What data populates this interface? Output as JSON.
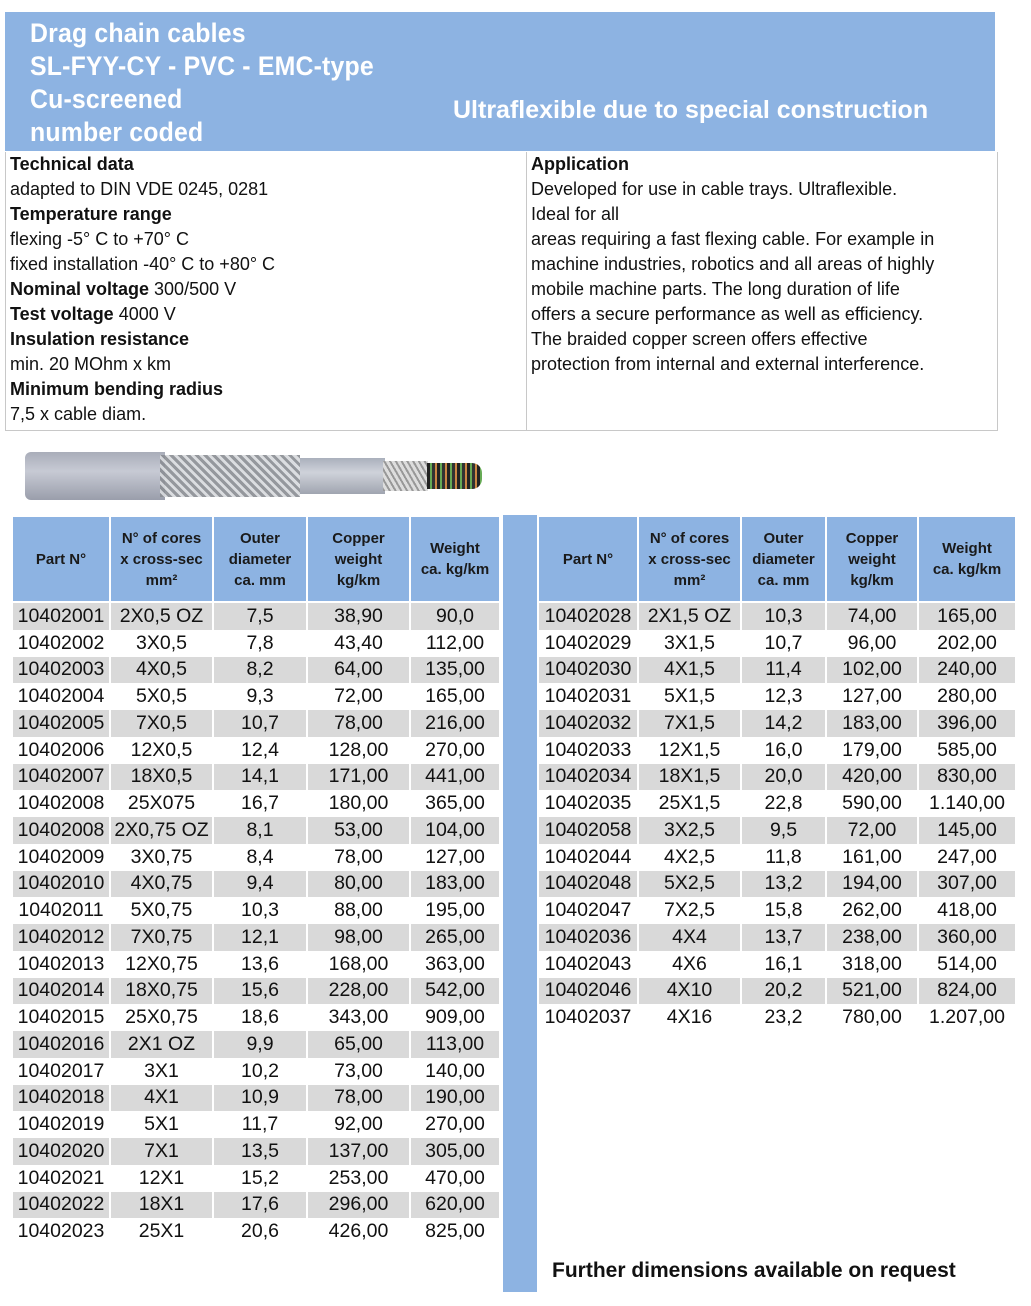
{
  "header": {
    "title_lines": [
      "Drag chain cables",
      "SL-FYY-CY - PVC - EMC-type",
      "Cu-screened",
      "number coded"
    ],
    "subtitle": "Ultraflexible due to special construction",
    "color": "#8db3e2"
  },
  "technical": {
    "heading": "Technical data",
    "standard": "adapted to DIN VDE 0245, 0281",
    "temp_heading": "Temperature range",
    "temp_flex": "flexing -5° C to +70° C",
    "temp_fixed": "fixed installation -40° C to +80° C",
    "nom_label": "Nominal voltage",
    "nom_value": " 300/500 V",
    "test_label": "Test voltage",
    "test_value": " 4000 V",
    "ins_heading": "Insulation resistance",
    "ins_value": "min. 20 MOhm x km",
    "bend_heading": "Minimum bending radius",
    "bend_value": "7,5 x cable diam."
  },
  "application": {
    "heading": "Application",
    "lines": [
      "Developed for use in cable trays. Ultraflexible.",
      "Ideal for all",
      "areas requiring a fast flexing cable. For example in",
      "machine industries, robotics and all areas of highly",
      "mobile machine parts. The long duration of life",
      "offers a secure performance as well as efficiency.",
      "The braided copper screen offers effective",
      "protection from internal and external interference."
    ]
  },
  "table": {
    "headers": [
      "Part N°",
      "N° of cores\nx cross-sec\nmm²",
      "Outer\ndiameter\nca. mm",
      "Copper\nweight\nkg/km",
      "Weight\nca. kg/km"
    ],
    "left_rows": [
      [
        "10402001",
        "2X0,5 OZ",
        "7,5",
        "38,90",
        "90,0"
      ],
      [
        "10402002",
        "3X0,5",
        "7,8",
        "43,40",
        "112,00"
      ],
      [
        "10402003",
        "4X0,5",
        "8,2",
        "64,00",
        "135,00"
      ],
      [
        "10402004",
        "5X0,5",
        "9,3",
        "72,00",
        "165,00"
      ],
      [
        "10402005",
        "7X0,5",
        "10,7",
        "78,00",
        "216,00"
      ],
      [
        "10402006",
        "12X0,5",
        "12,4",
        "128,00",
        "270,00"
      ],
      [
        "10402007",
        "18X0,5",
        "14,1",
        "171,00",
        "441,00"
      ],
      [
        "10402008",
        "25X075",
        "16,7",
        "180,00",
        "365,00"
      ],
      [
        "10402008",
        "2X0,75 OZ",
        "8,1",
        "53,00",
        "104,00"
      ],
      [
        "10402009",
        "3X0,75",
        "8,4",
        "78,00",
        "127,00"
      ],
      [
        "10402010",
        "4X0,75",
        "9,4",
        "80,00",
        "183,00"
      ],
      [
        "10402011",
        "5X0,75",
        "10,3",
        "88,00",
        "195,00"
      ],
      [
        "10402012",
        "7X0,75",
        "12,1",
        "98,00",
        "265,00"
      ],
      [
        "10402013",
        "12X0,75",
        "13,6",
        "168,00",
        "363,00"
      ],
      [
        "10402014",
        "18X0,75",
        "15,6",
        "228,00",
        "542,00"
      ],
      [
        "10402015",
        "25X0,75",
        "18,6",
        "343,00",
        "909,00"
      ],
      [
        "10402016",
        "2X1 OZ",
        "9,9",
        "65,00",
        "113,00"
      ],
      [
        "10402017",
        "3X1",
        "10,2",
        "73,00",
        "140,00"
      ],
      [
        "10402018",
        "4X1",
        "10,9",
        "78,00",
        "190,00"
      ],
      [
        "10402019",
        "5X1",
        "11,7",
        "92,00",
        "270,00"
      ],
      [
        "10402020",
        "7X1",
        "13,5",
        "137,00",
        "305,00"
      ],
      [
        "10402021",
        "12X1",
        "15,2",
        "253,00",
        "470,00"
      ],
      [
        "10402022",
        "18X1",
        "17,6",
        "296,00",
        "620,00"
      ],
      [
        "10402023",
        "25X1",
        "20,6",
        "426,00",
        "825,00"
      ]
    ],
    "right_rows": [
      [
        "10402028",
        "2X1,5 OZ",
        "10,3",
        "74,00",
        "165,00"
      ],
      [
        "10402029",
        "3X1,5",
        "10,7",
        "96,00",
        "202,00"
      ],
      [
        "10402030",
        "4X1,5",
        "11,4",
        "102,00",
        "240,00"
      ],
      [
        "10402031",
        "5X1,5",
        "12,3",
        "127,00",
        "280,00"
      ],
      [
        "10402032",
        "7X1,5",
        "14,2",
        "183,00",
        "396,00"
      ],
      [
        "10402033",
        "12X1,5",
        "16,0",
        "179,00",
        "585,00"
      ],
      [
        "10402034",
        "18X1,5",
        "20,0",
        "420,00",
        "830,00"
      ],
      [
        "10402035",
        "25X1,5",
        "22,8",
        "590,00",
        "1.140,00"
      ],
      [
        "10402058",
        "3X2,5",
        "9,5",
        "72,00",
        "145,00"
      ],
      [
        "10402044",
        "4X2,5",
        "11,8",
        "161,00",
        "247,00"
      ],
      [
        "10402048",
        "5X2,5",
        "13,2",
        "194,00",
        "307,00"
      ],
      [
        "10402047",
        "7X2,5",
        "15,8",
        "262,00",
        "418,00"
      ],
      [
        "10402036",
        "4X4",
        "13,7",
        "238,00",
        "360,00"
      ],
      [
        "10402043",
        "4X6",
        "16,1",
        "318,00",
        "514,00"
      ],
      [
        "10402046",
        "4X10",
        "20,2",
        "521,00",
        "824,00"
      ],
      [
        "10402037",
        "4X16",
        "23,2",
        "780,00",
        "1.207,00"
      ]
    ]
  },
  "footer": "Further dimensions available on request"
}
